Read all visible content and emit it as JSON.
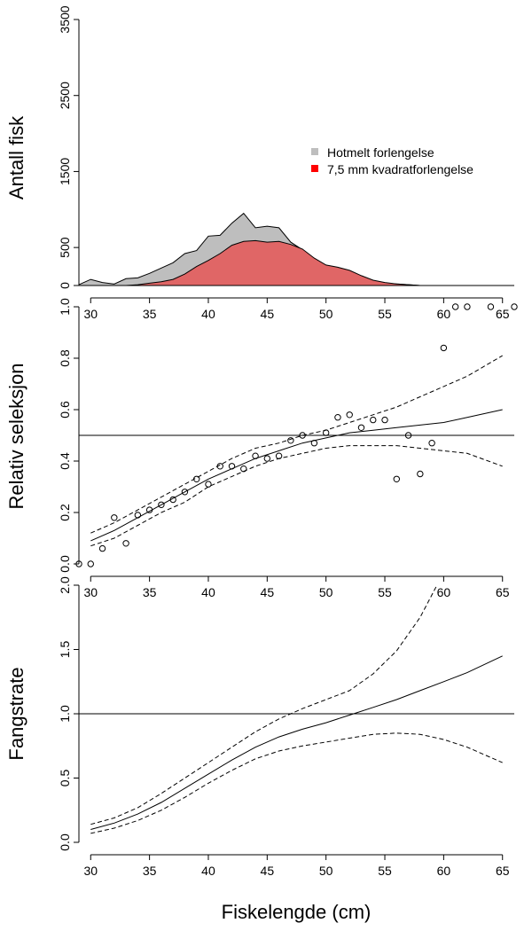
{
  "chart_data": [
    {
      "type": "area",
      "ylabel": "Antall fisk",
      "xlim": [
        29,
        66
      ],
      "ylim": [
        0,
        3500
      ],
      "yticks": [
        0,
        500,
        1500,
        2500,
        3500
      ],
      "legend": {
        "placement": "center-right",
        "items": [
          {
            "label": "Hotmelt forlengelse",
            "color": "#bebebe"
          },
          {
            "label": "7,5 mm kvadratforlengelse",
            "color": "#ff0000"
          }
        ]
      },
      "series": [
        {
          "name": "Hotmelt forlengelse",
          "color": "#bebebe",
          "x": [
            29,
            30,
            31,
            32,
            33,
            34,
            35,
            36,
            37,
            38,
            39,
            40,
            41,
            42,
            43,
            44,
            45,
            46,
            47,
            48,
            49,
            50,
            51,
            52,
            53,
            54,
            55,
            56,
            57,
            58
          ],
          "values": [
            10,
            80,
            40,
            20,
            90,
            100,
            160,
            230,
            300,
            420,
            460,
            650,
            660,
            820,
            950,
            760,
            780,
            760,
            570,
            470,
            340,
            260,
            220,
            180,
            120,
            60,
            30,
            20,
            10,
            0
          ]
        },
        {
          "name": "7,5 mm kvadratforlengelse",
          "color": "#e06666",
          "x": [
            29,
            30,
            31,
            32,
            33,
            34,
            35,
            36,
            37,
            38,
            39,
            40,
            41,
            42,
            43,
            44,
            45,
            46,
            47,
            48,
            49,
            50,
            51,
            52,
            53,
            54,
            55,
            56,
            57,
            58
          ],
          "values": [
            0,
            0,
            0,
            0,
            0,
            10,
            30,
            50,
            80,
            150,
            250,
            330,
            420,
            530,
            580,
            590,
            570,
            580,
            540,
            480,
            360,
            270,
            240,
            200,
            130,
            70,
            40,
            20,
            10,
            0
          ]
        }
      ]
    },
    {
      "type": "scatter",
      "ylabel": "Relativ seleksjon",
      "xlim": [
        29,
        66
      ],
      "ylim": [
        0,
        1.0
      ],
      "yticks": [
        0.0,
        0.2,
        0.4,
        0.6,
        0.8,
        1.0
      ],
      "xticks": [
        30,
        35,
        40,
        45,
        50,
        55,
        60,
        65
      ],
      "hline": 0.5,
      "points": {
        "x": [
          29,
          30,
          31,
          32,
          33,
          34,
          35,
          36,
          37,
          38,
          39,
          40,
          41,
          42,
          43,
          44,
          45,
          46,
          47,
          48,
          49,
          50,
          51,
          52,
          53,
          54,
          55,
          56,
          57,
          58,
          59,
          60,
          61,
          62,
          64,
          66
        ],
        "y": [
          0.0,
          0.0,
          0.06,
          0.18,
          0.08,
          0.19,
          0.21,
          0.23,
          0.25,
          0.28,
          0.33,
          0.31,
          0.38,
          0.38,
          0.37,
          0.42,
          0.41,
          0.42,
          0.48,
          0.5,
          0.47,
          0.51,
          0.57,
          0.58,
          0.53,
          0.56,
          0.56,
          0.33,
          0.5,
          0.35,
          0.47,
          0.84,
          1.0,
          1.0,
          1.0,
          1.0
        ]
      },
      "fit": {
        "x": [
          30,
          32,
          34,
          36,
          38,
          40,
          42,
          44,
          46,
          48,
          50,
          52,
          54,
          56,
          58,
          60,
          62,
          65
        ],
        "y": [
          0.09,
          0.13,
          0.18,
          0.23,
          0.28,
          0.33,
          0.37,
          0.41,
          0.44,
          0.47,
          0.49,
          0.51,
          0.52,
          0.53,
          0.54,
          0.55,
          0.57,
          0.6
        ],
        "lower": [
          0.07,
          0.1,
          0.15,
          0.2,
          0.24,
          0.3,
          0.34,
          0.38,
          0.41,
          0.43,
          0.45,
          0.46,
          0.46,
          0.46,
          0.45,
          0.44,
          0.43,
          0.38
        ],
        "upper": [
          0.12,
          0.16,
          0.21,
          0.26,
          0.31,
          0.36,
          0.41,
          0.45,
          0.47,
          0.5,
          0.52,
          0.55,
          0.58,
          0.61,
          0.65,
          0.69,
          0.73,
          0.81
        ]
      }
    },
    {
      "type": "line",
      "ylabel": "Fangstrate",
      "xlabel": "Fiskelengde (cm)",
      "xlim": [
        29,
        66
      ],
      "ylim": [
        0,
        2.0
      ],
      "yticks": [
        0.0,
        0.5,
        1.0,
        1.5,
        2.0
      ],
      "xticks": [
        30,
        35,
        40,
        45,
        50,
        55,
        60,
        65
      ],
      "hline": 1.0,
      "fit": {
        "x": [
          30,
          32,
          34,
          36,
          38,
          40,
          42,
          44,
          46,
          48,
          50,
          52,
          54,
          56,
          58,
          60,
          62,
          65
        ],
        "y": [
          0.1,
          0.15,
          0.22,
          0.31,
          0.42,
          0.53,
          0.64,
          0.74,
          0.82,
          0.88,
          0.93,
          0.99,
          1.05,
          1.11,
          1.18,
          1.25,
          1.32,
          1.45
        ],
        "lower": [
          0.07,
          0.11,
          0.17,
          0.25,
          0.35,
          0.46,
          0.56,
          0.65,
          0.71,
          0.75,
          0.78,
          0.81,
          0.84,
          0.85,
          0.84,
          0.8,
          0.74,
          0.62
        ],
        "upper": [
          0.14,
          0.19,
          0.27,
          0.38,
          0.5,
          0.62,
          0.74,
          0.86,
          0.96,
          1.04,
          1.11,
          1.18,
          1.31,
          1.49,
          1.75,
          2.1,
          2.4,
          2.6
        ]
      }
    }
  ]
}
